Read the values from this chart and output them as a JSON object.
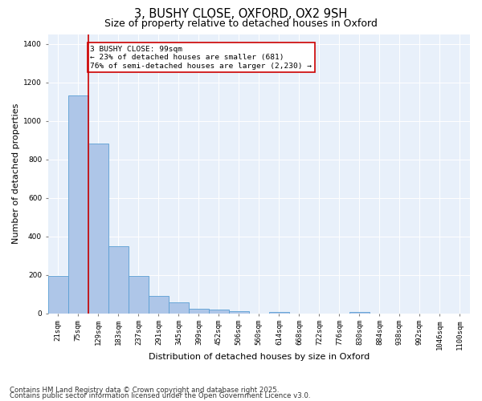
{
  "title1": "3, BUSHY CLOSE, OXFORD, OX2 9SH",
  "title2": "Size of property relative to detached houses in Oxford",
  "xlabel": "Distribution of detached houses by size in Oxford",
  "ylabel": "Number of detached properties",
  "categories": [
    "21sqm",
    "75sqm",
    "129sqm",
    "183sqm",
    "237sqm",
    "291sqm",
    "345sqm",
    "399sqm",
    "452sqm",
    "506sqm",
    "560sqm",
    "614sqm",
    "668sqm",
    "722sqm",
    "776sqm",
    "830sqm",
    "884sqm",
    "938sqm",
    "992sqm",
    "1046sqm",
    "1100sqm"
  ],
  "values": [
    193,
    1130,
    883,
    350,
    195,
    90,
    55,
    22,
    18,
    12,
    0,
    5,
    0,
    0,
    0,
    5,
    0,
    0,
    0,
    0,
    0
  ],
  "bar_color": "#aec6e8",
  "bar_edge_color": "#5a9fd4",
  "vline_color": "#cc0000",
  "annotation_text": "3 BUSHY CLOSE: 99sqm\n← 23% of detached houses are smaller (681)\n76% of semi-detached houses are larger (2,230) →",
  "annotation_box_color": "#cc0000",
  "ylim": [
    0,
    1450
  ],
  "background_color": "#e8f0fa",
  "footer1": "Contains HM Land Registry data © Crown copyright and database right 2025.",
  "footer2": "Contains public sector information licensed under the Open Government Licence v3.0.",
  "title_fontsize": 10.5,
  "subtitle_fontsize": 9,
  "axis_label_fontsize": 8,
  "tick_fontsize": 6.5,
  "footer_fontsize": 6.2
}
